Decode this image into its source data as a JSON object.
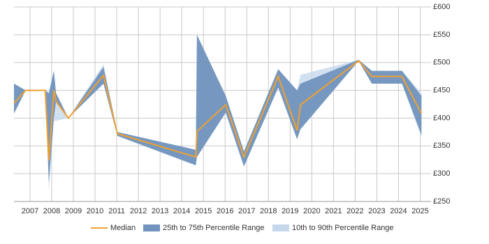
{
  "chart_data": {
    "type": "band-line",
    "x": [
      2006.26,
      2006.8,
      2007.7,
      2007.87,
      2008.1,
      2008.2,
      2008.77,
      2010.39,
      2011.03,
      2014.65,
      2014.7,
      2016.03,
      2016.87,
      2018.45,
      2019.32,
      2019.48,
      2022.16,
      2022.77,
      2024.16,
      2025.06
    ],
    "series": [
      {
        "name": "10th to 90th Percentile Range",
        "color": "#c6d9ec",
        "low": [
          408,
          450,
          450,
          270,
          395,
          395,
          400,
          462,
          368,
          315,
          330,
          410,
          313,
          455,
          362,
          385,
          503,
          462,
          462,
          365
        ],
        "high": [
          462,
          450,
          450,
          445,
          485,
          445,
          400,
          497,
          375,
          343,
          550,
          440,
          340,
          488,
          450,
          478,
          505,
          485,
          485,
          445
        ]
      },
      {
        "name": "25th to 75th Percentile Range",
        "color": "#7193bd",
        "low": [
          408,
          450,
          450,
          285,
          400,
          430,
          400,
          462,
          368,
          315,
          330,
          410,
          313,
          455,
          362,
          380,
          503,
          462,
          462,
          370
        ],
        "high": [
          462,
          450,
          450,
          445,
          485,
          445,
          400,
          492,
          375,
          343,
          550,
          440,
          340,
          488,
          450,
          462,
          505,
          485,
          485,
          440
        ]
      },
      {
        "name": "Median",
        "color": "#f0a030",
        "values": [
          427,
          450,
          450,
          324,
          450,
          430,
          400,
          477,
          372,
          330,
          376,
          424,
          330,
          475,
          378,
          424,
          503,
          475,
          475,
          408
        ]
      }
    ],
    "xlim": [
      2006.26,
      2025.5
    ],
    "xticks": [
      2007,
      2008,
      2009,
      2010,
      2011,
      2012,
      2013,
      2014,
      2015,
      2016,
      2017,
      2018,
      2019,
      2020,
      2021,
      2022,
      2023,
      2024,
      2025
    ],
    "ylim": [
      250,
      600
    ],
    "yticks": [
      {
        "value": 250,
        "label": "£250"
      },
      {
        "value": 300,
        "label": "£300"
      },
      {
        "value": 350,
        "label": "£350"
      },
      {
        "value": 400,
        "label": "£400"
      },
      {
        "value": 450,
        "label": "£450"
      },
      {
        "value": 500,
        "label": "£500"
      },
      {
        "value": 550,
        "label": "£550"
      },
      {
        "value": 600,
        "label": "£600"
      }
    ],
    "grid": true
  }
}
